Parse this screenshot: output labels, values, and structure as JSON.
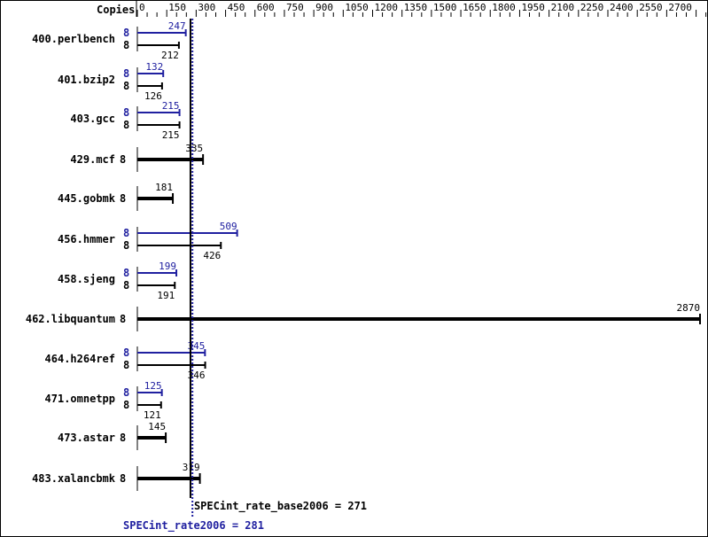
{
  "chart_data": {
    "type": "bar",
    "orientation": "horizontal",
    "axis_label": "Copies",
    "xlim": [
      0,
      2900
    ],
    "ticks": [
      0,
      150,
      300,
      450,
      600,
      750,
      900,
      1050,
      1200,
      1350,
      1500,
      1650,
      1800,
      1950,
      2100,
      2250,
      2400,
      2550,
      2700,
      2900
    ],
    "colors": {
      "peak": "#2020a0",
      "base": "#000000"
    },
    "benchmarks": [
      {
        "name": "400.perlbench",
        "copies_peak": "8",
        "peak": 247,
        "copies_base": "8",
        "base": 212
      },
      {
        "name": "401.bzip2",
        "copies_peak": "8",
        "peak": 132,
        "copies_base": "8",
        "base": 126
      },
      {
        "name": "403.gcc",
        "copies_peak": "8",
        "peak": 215,
        "copies_base": "8",
        "base": 215
      },
      {
        "name": "429.mcf",
        "copies_base": "8",
        "base": 335
      },
      {
        "name": "445.gobmk",
        "copies_base": "8",
        "base": 181
      },
      {
        "name": "456.hmmer",
        "copies_peak": "8",
        "peak": 509,
        "copies_base": "8",
        "base": 426
      },
      {
        "name": "458.sjeng",
        "copies_peak": "8",
        "peak": 199,
        "copies_base": "8",
        "base": 191
      },
      {
        "name": "462.libquantum",
        "copies_base": "8",
        "base": 2870
      },
      {
        "name": "464.h264ref",
        "copies_peak": "8",
        "peak": 345,
        "copies_base": "8",
        "base": 346
      },
      {
        "name": "471.omnetpp",
        "copies_peak": "8",
        "peak": 125,
        "copies_base": "8",
        "base": 121
      },
      {
        "name": "473.astar",
        "copies_base": "8",
        "base": 145
      },
      {
        "name": "483.xalancbmk",
        "copies_base": "8",
        "base": 319
      }
    ],
    "base_metric": {
      "label": "SPECint_rate_base2006 = 271",
      "value": 271
    },
    "peak_metric": {
      "label": "SPECint_rate2006 = 281",
      "value": 281
    }
  }
}
